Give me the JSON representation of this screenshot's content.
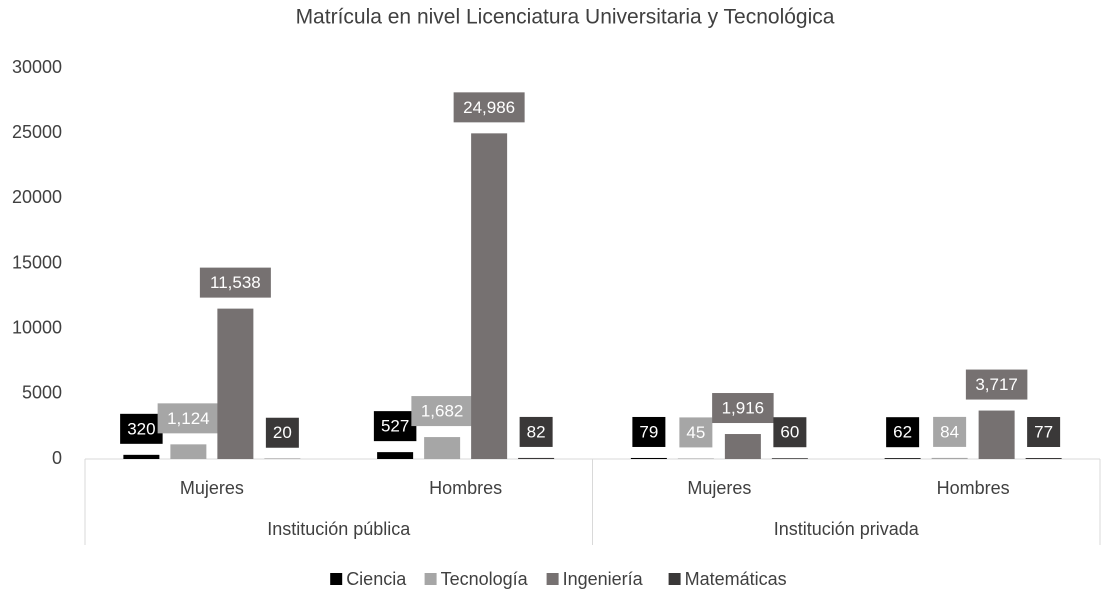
{
  "chart_data": {
    "type": "bar",
    "title": "Matrícula en nivel Licenciatura Universitaria y Tecnológica",
    "categories": [
      "Mujeres",
      "Hombres",
      "Mujeres",
      "Hombres"
    ],
    "groups": [
      {
        "name": "Institución pública",
        "span": 2
      },
      {
        "name": "Institución privada",
        "span": 2
      }
    ],
    "series": [
      {
        "name": "Ciencia",
        "color": "#000000",
        "values": [
          320,
          527,
          79,
          62
        ],
        "value_labels": [
          "320",
          "527",
          "79",
          "62"
        ]
      },
      {
        "name": "Tecnología",
        "color": "#a6a6a6",
        "values": [
          1124,
          1682,
          45,
          84
        ],
        "value_labels": [
          "1,124",
          "1,682",
          "45",
          "84"
        ]
      },
      {
        "name": "Ingeniería",
        "color": "#767171",
        "values": [
          11538,
          24986,
          1916,
          3717
        ],
        "value_labels": [
          "11,538",
          "24,986",
          "1,916",
          "3,717"
        ]
      },
      {
        "name": "Matemáticas",
        "color": "#3a3838",
        "values": [
          20,
          82,
          60,
          77
        ],
        "value_labels": [
          "20",
          "82",
          "60",
          "77"
        ]
      }
    ],
    "ylim": [
      0,
      30000
    ],
    "yticks": [
      0,
      5000,
      10000,
      15000,
      20000,
      25000,
      30000
    ],
    "grid": false,
    "legend": "bottom"
  }
}
